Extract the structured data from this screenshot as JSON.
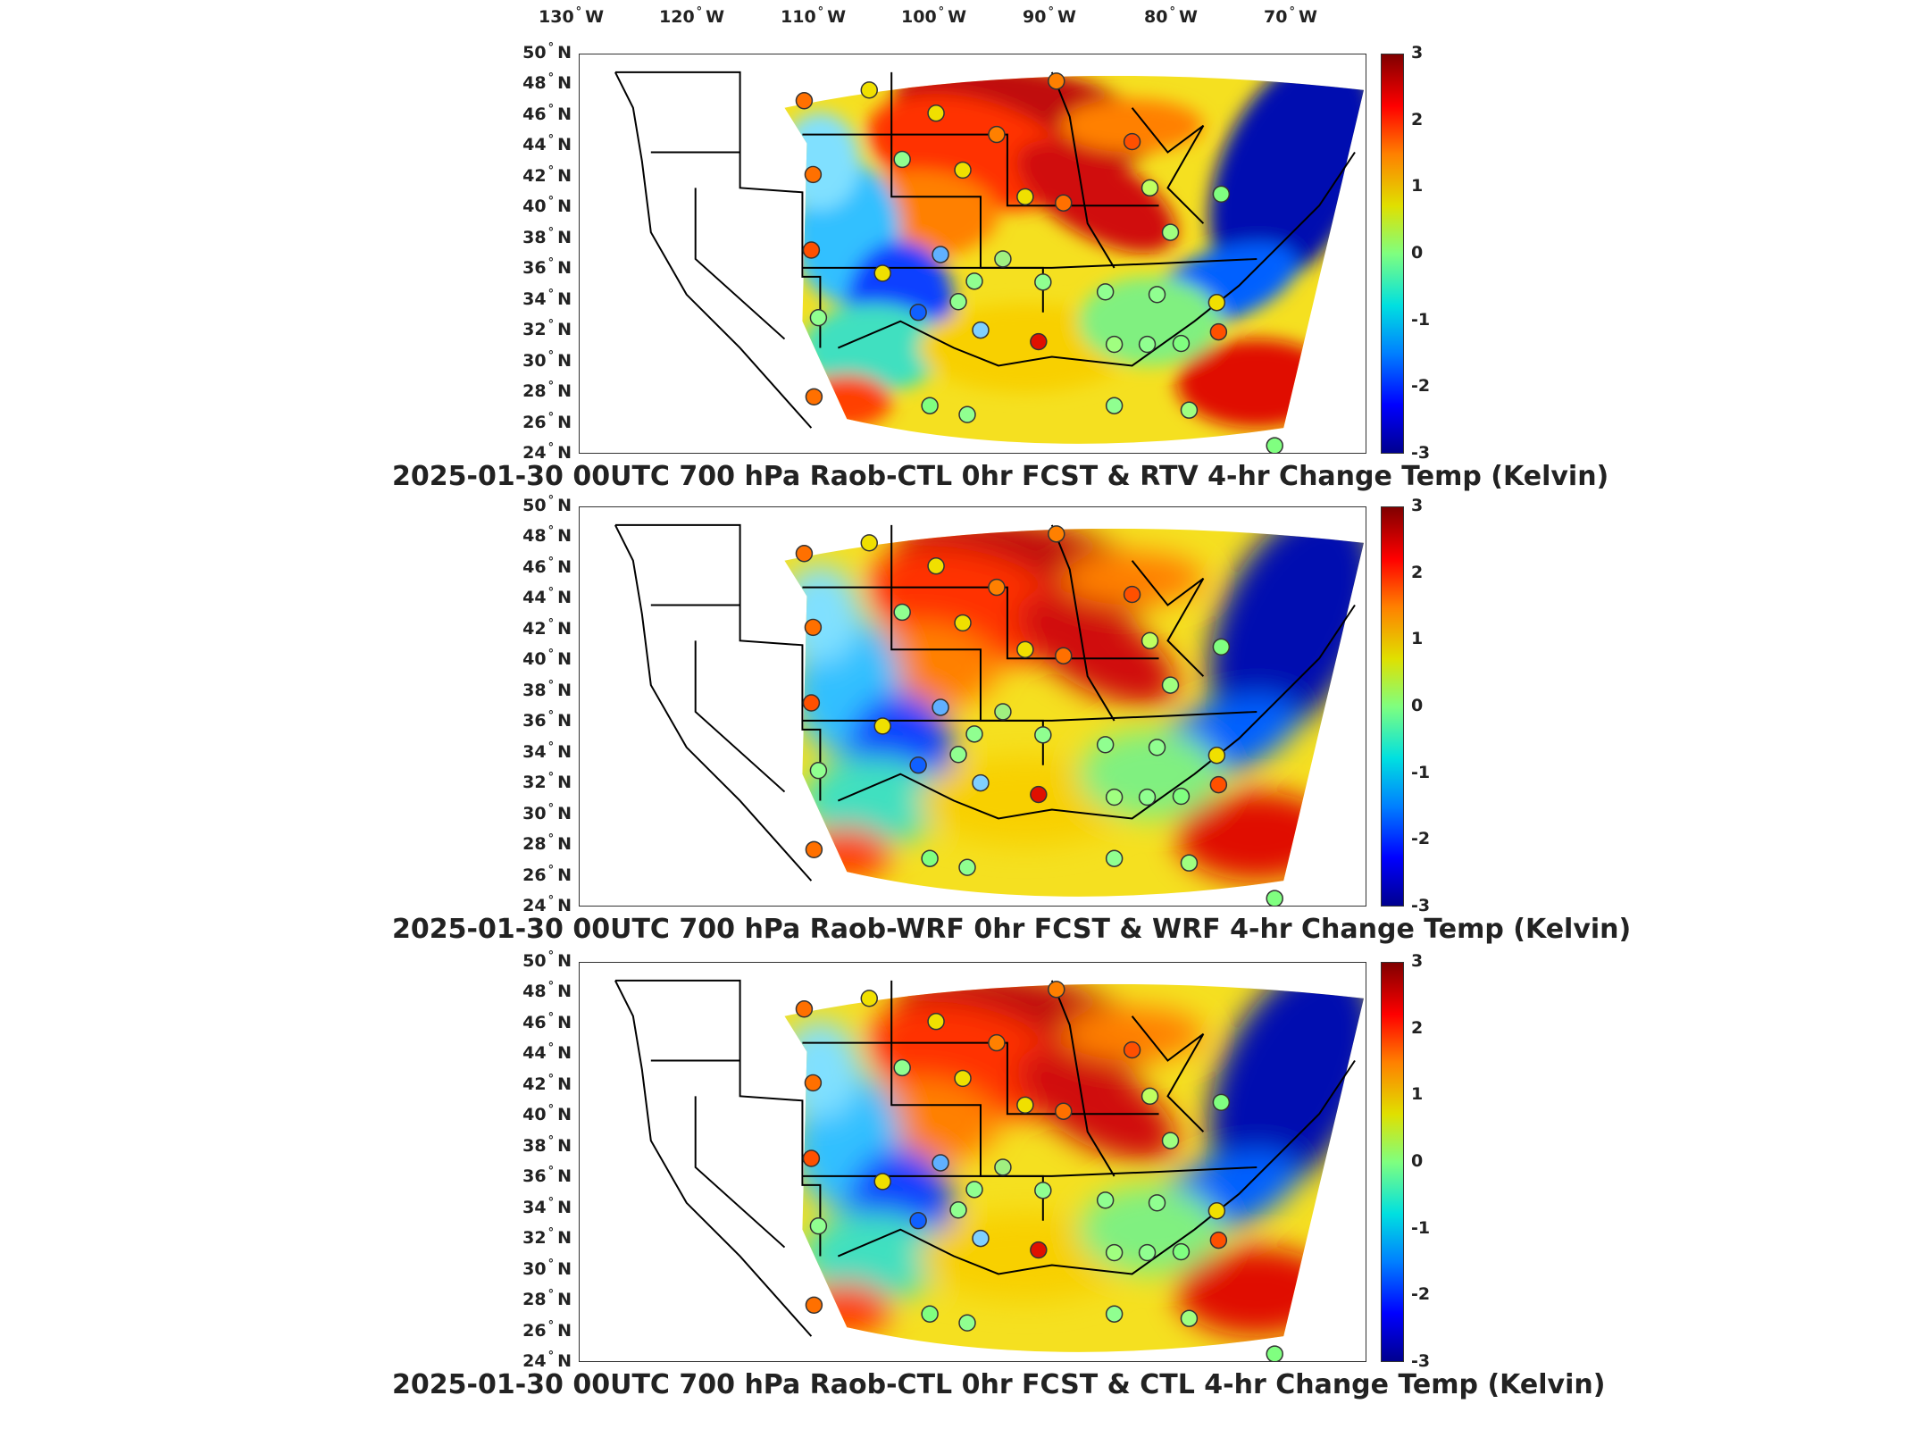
{
  "longitude_labels": [
    {
      "deg": "130",
      "dir": "W"
    },
    {
      "deg": "120",
      "dir": "W"
    },
    {
      "deg": "110",
      "dir": "W"
    },
    {
      "deg": "100",
      "dir": "W"
    },
    {
      "deg": "90",
      "dir": "W"
    },
    {
      "deg": "80",
      "dir": "W"
    },
    {
      "deg": "70",
      "dir": "W"
    }
  ],
  "latitude_labels": [
    {
      "deg": "50",
      "dir": "N"
    },
    {
      "deg": "48",
      "dir": "N"
    },
    {
      "deg": "46",
      "dir": "N"
    },
    {
      "deg": "44",
      "dir": "N"
    },
    {
      "deg": "42",
      "dir": "N"
    },
    {
      "deg": "40",
      "dir": "N"
    },
    {
      "deg": "38",
      "dir": "N"
    },
    {
      "deg": "36",
      "dir": "N"
    },
    {
      "deg": "34",
      "dir": "N"
    },
    {
      "deg": "32",
      "dir": "N"
    },
    {
      "deg": "30",
      "dir": "N"
    },
    {
      "deg": "28",
      "dir": "N"
    },
    {
      "deg": "26",
      "dir": "N"
    },
    {
      "deg": "24",
      "dir": "N"
    }
  ],
  "colorbar": {
    "ticks": [
      "3",
      "2",
      "1",
      "0",
      "-1",
      "-2",
      "-3"
    ],
    "colors": [
      "#00008f",
      "#0000ff",
      "#0080ff",
      "#00e0e0",
      "#7fff7f",
      "#e0e000",
      "#ff8000",
      "#ff0000",
      "#800000"
    ]
  },
  "panels": [
    {
      "title": "2025-01-30 00UTC 700 hPa Raob-CTL 0hr FCST & RTV 4-hr Change Temp (Kelvin)"
    },
    {
      "title": "2025-01-30 00UTC 700 hPa Raob-WRF 0hr FCST & WRF 4-hr Change Temp (Kelvin)"
    },
    {
      "title": "2025-01-30 00UTC 700 hPa Raob-CTL 0hr FCST & CTL 4-hr Change Temp (Kelvin)"
    }
  ]
}
